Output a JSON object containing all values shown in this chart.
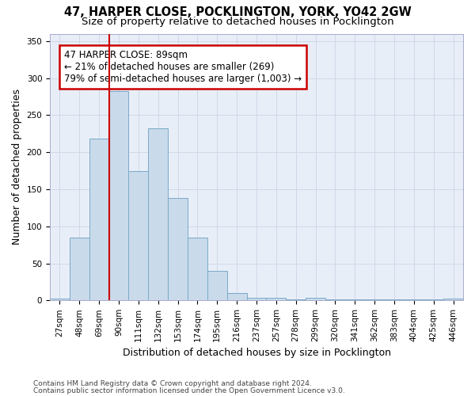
{
  "title1": "47, HARPER CLOSE, POCKLINGTON, YORK, YO42 2GW",
  "title2": "Size of property relative to detached houses in Pocklington",
  "xlabel": "Distribution of detached houses by size in Pocklington",
  "ylabel": "Number of detached properties",
  "categories": [
    "27sqm",
    "48sqm",
    "69sqm",
    "90sqm",
    "111sqm",
    "132sqm",
    "153sqm",
    "174sqm",
    "195sqm",
    "216sqm",
    "237sqm",
    "257sqm",
    "278sqm",
    "299sqm",
    "320sqm",
    "341sqm",
    "362sqm",
    "383sqm",
    "404sqm",
    "425sqm",
    "446sqm"
  ],
  "values": [
    3,
    85,
    218,
    283,
    175,
    232,
    138,
    85,
    40,
    10,
    4,
    4,
    1,
    4,
    1,
    1,
    1,
    1,
    1,
    1,
    2
  ],
  "bar_color": "#c9daea",
  "bar_edge_color": "#7aaac8",
  "bar_linewidth": 0.7,
  "vline_x": 2.5,
  "vline_color": "#cc0000",
  "annotation_line1": "47 HARPER CLOSE: 89sqm",
  "annotation_line2": "← 21% of detached houses are smaller (269)",
  "annotation_line3": "79% of semi-detached houses are larger (1,003) →",
  "ylim": [
    0,
    360
  ],
  "yticks": [
    0,
    50,
    100,
    150,
    200,
    250,
    300,
    350
  ],
  "grid_color": "#d0d8e8",
  "bg_color": "#e8eef8",
  "footnote1": "Contains HM Land Registry data © Crown copyright and database right 2024.",
  "footnote2": "Contains public sector information licensed under the Open Government Licence v3.0.",
  "title_fontsize": 10.5,
  "subtitle_fontsize": 9.5,
  "axis_label_fontsize": 9,
  "tick_fontsize": 7.5,
  "annot_fontsize": 8.5,
  "footnote_fontsize": 6.5
}
